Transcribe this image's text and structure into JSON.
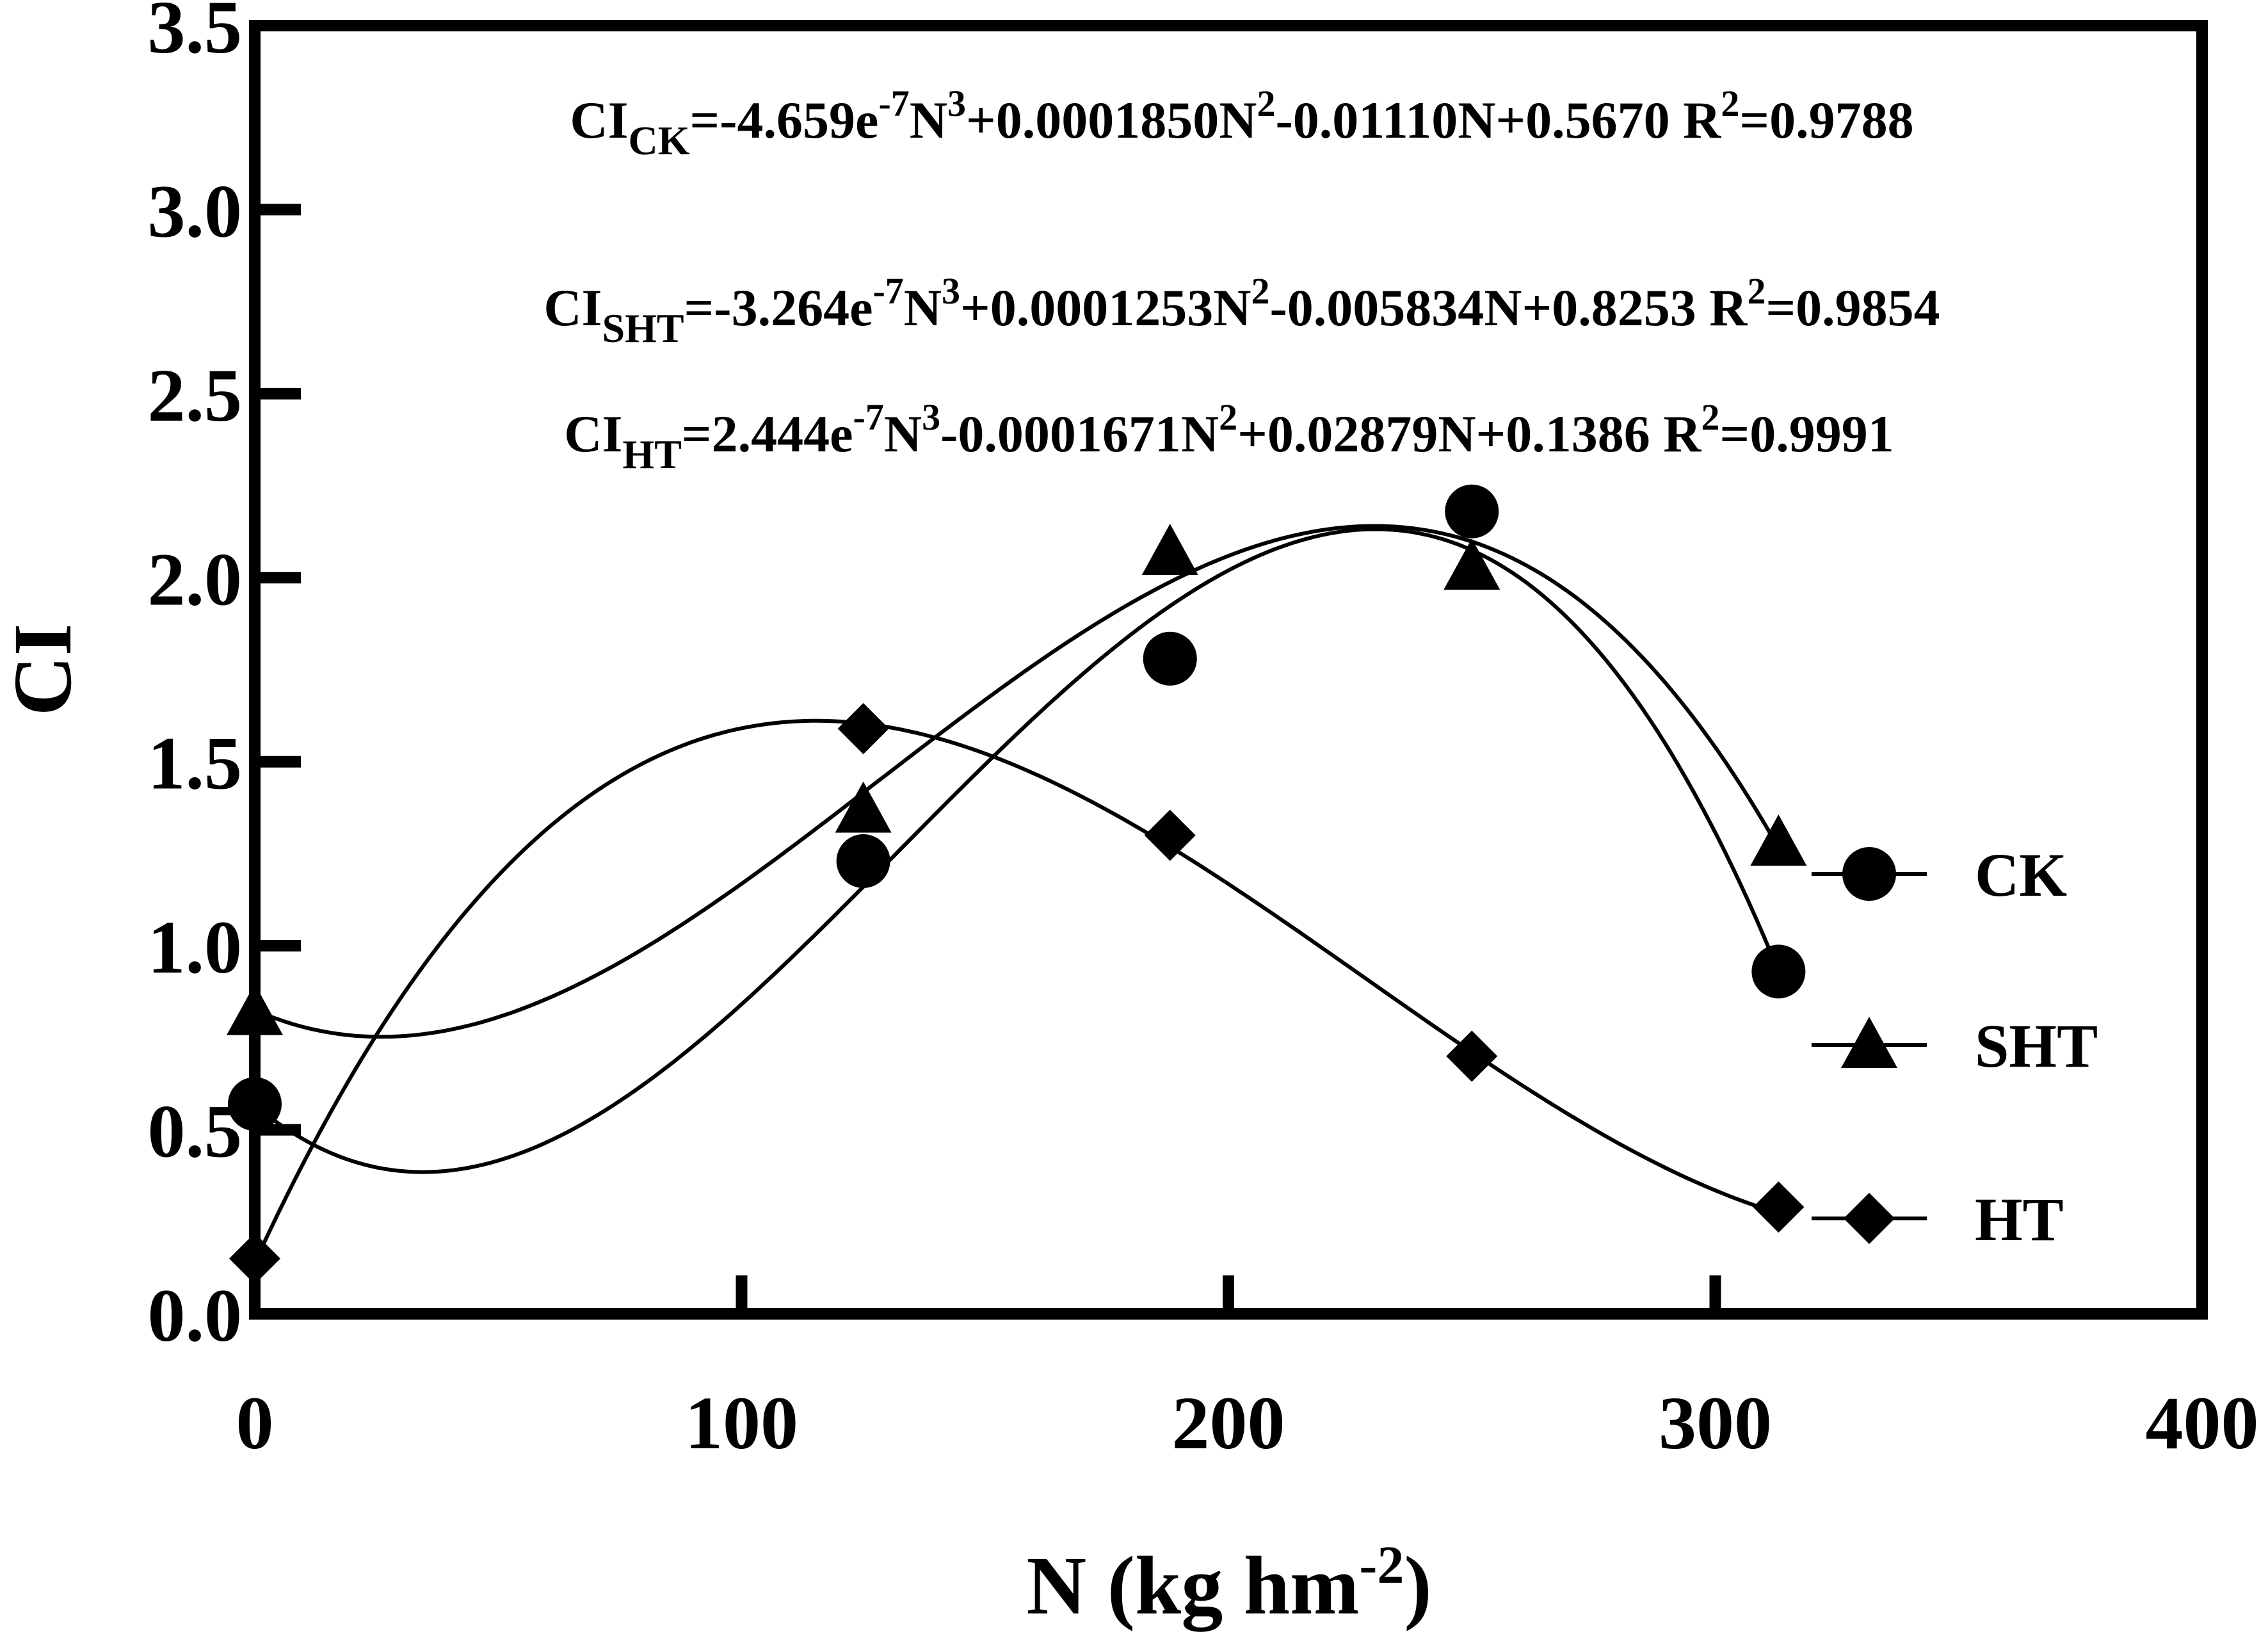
{
  "chart_data": {
    "type": "scatter",
    "xlabel": "N (kg hm",
    "xlabel_sup": "-2",
    "xlabel_end": ")",
    "ylabel": "CI",
    "xlim": [
      0,
      400
    ],
    "ylim": [
      0,
      3.5
    ],
    "x_ticks": [
      0,
      100,
      200,
      300,
      400
    ],
    "x_tick_labels": [
      "0",
      "100",
      "200",
      "300",
      "400"
    ],
    "y_ticks": [
      0,
      0.5,
      1.0,
      1.5,
      2.0,
      2.5,
      3.0,
      3.5
    ],
    "y_tick_labels": [
      "0.0",
      "0.5",
      "1.0",
      "1.5",
      "2.0",
      "2.5",
      "3.0",
      "3.5"
    ],
    "grid": false,
    "legend_position": "right",
    "series": [
      {
        "name": "CK",
        "marker": "circle",
        "x": [
          0,
          125,
          188,
          250,
          313
        ],
        "y": [
          0.57,
          1.23,
          1.78,
          2.18,
          0.93
        ],
        "fit": [
          -4.659e-07,
          0.000185,
          -0.0111,
          0.567
        ]
      },
      {
        "name": "SHT",
        "marker": "triangle",
        "x": [
          0,
          125,
          188,
          250,
          313
        ],
        "y": [
          0.82,
          1.37,
          2.07,
          2.03,
          1.28
        ],
        "fit": [
          -3.264e-07,
          0.0001253,
          -0.005834,
          0.8253
        ]
      },
      {
        "name": "HT",
        "marker": "diamond",
        "x": [
          0,
          125,
          188,
          250,
          313
        ],
        "y": [
          0.15,
          1.59,
          1.3,
          0.7,
          0.29
        ],
        "fit": [
          2.444e-07,
          -0.0001671,
          0.02879,
          0.1386
        ]
      }
    ],
    "annotations": [
      {
        "parts": [
          [
            "CI",
            ""
          ],
          [
            "CK",
            "sub"
          ],
          [
            "=-4.659e",
            ""
          ],
          [
            "-7",
            "sup"
          ],
          [
            "N",
            ""
          ],
          [
            "3",
            "sup"
          ],
          [
            "+0.0001850N",
            ""
          ],
          [
            "2",
            "sup"
          ],
          [
            "-0.01110N+0.5670 R",
            ""
          ],
          [
            "2",
            "sup"
          ],
          [
            "=0.9788",
            ""
          ]
        ]
      },
      {
        "parts": [
          [
            "CI",
            ""
          ],
          [
            "SHT",
            "sub"
          ],
          [
            "=-3.264e",
            ""
          ],
          [
            "-7",
            "sup"
          ],
          [
            "N",
            ""
          ],
          [
            "3",
            "sup"
          ],
          [
            "+0.0001253N",
            ""
          ],
          [
            "2",
            "sup"
          ],
          [
            "-0.005834N+0.8253 R",
            ""
          ],
          [
            "2",
            "sup"
          ],
          [
            "=0.9854",
            ""
          ]
        ]
      },
      {
        "parts": [
          [
            "CI",
            ""
          ],
          [
            "HT",
            "sub"
          ],
          [
            "=2.444e",
            ""
          ],
          [
            "-7",
            "sup"
          ],
          [
            "N",
            ""
          ],
          [
            "3",
            "sup"
          ],
          [
            "-0.0001671N",
            ""
          ],
          [
            "2",
            "sup"
          ],
          [
            "+0.02879N+0.1386 R",
            ""
          ],
          [
            "2",
            "sup"
          ],
          [
            "=0.9991",
            ""
          ]
        ]
      }
    ]
  }
}
